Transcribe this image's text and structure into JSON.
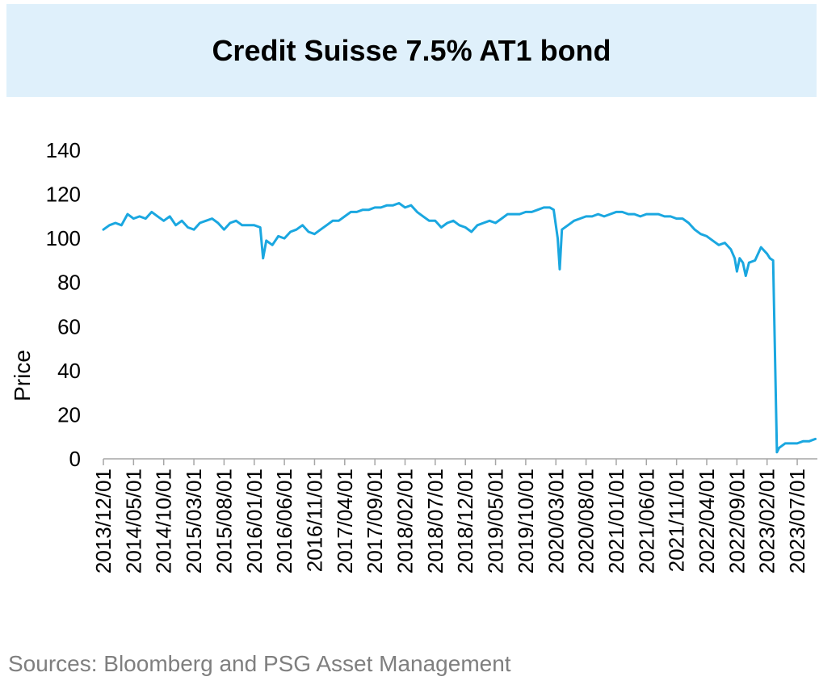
{
  "chart_data": {
    "type": "line",
    "title": "Credit Suisse 7.5% AT1 bond",
    "ylabel": "Price",
    "xlabel": "",
    "ylim": [
      0,
      140
    ],
    "yticks": [
      0,
      20,
      40,
      60,
      80,
      100,
      120,
      140
    ],
    "x_tick_labels": [
      "2013/12/01",
      "2014/05/01",
      "2014/10/01",
      "2015/03/01",
      "2015/08/01",
      "2016/01/01",
      "2016/06/01",
      "2016/11/01",
      "2017/04/01",
      "2017/09/01",
      "2018/02/01",
      "2018/07/01",
      "2018/12/01",
      "2019/05/01",
      "2019/10/01",
      "2020/03/01",
      "2020/08/01",
      "2021/01/01",
      "2021/06/01",
      "2021/11/01",
      "2022/04/01",
      "2022/09/01",
      "2023/02/01",
      "2023/07/01"
    ],
    "grid": false,
    "legend": "none",
    "color": "#1aa7e0",
    "series": [
      {
        "points": [
          [
            "2013/12/01",
            104
          ],
          [
            "2014/01/01",
            106
          ],
          [
            "2014/02/01",
            107
          ],
          [
            "2014/03/01",
            106
          ],
          [
            "2014/04/01",
            111
          ],
          [
            "2014/05/01",
            109
          ],
          [
            "2014/06/01",
            110
          ],
          [
            "2014/07/01",
            109
          ],
          [
            "2014/08/01",
            112
          ],
          [
            "2014/09/01",
            110
          ],
          [
            "2014/10/01",
            108
          ],
          [
            "2014/11/01",
            110
          ],
          [
            "2014/12/01",
            106
          ],
          [
            "2015/01/01",
            108
          ],
          [
            "2015/02/01",
            105
          ],
          [
            "2015/03/01",
            104
          ],
          [
            "2015/04/01",
            107
          ],
          [
            "2015/05/01",
            108
          ],
          [
            "2015/06/01",
            109
          ],
          [
            "2015/07/01",
            107
          ],
          [
            "2015/08/01",
            104
          ],
          [
            "2015/09/01",
            107
          ],
          [
            "2015/10/01",
            108
          ],
          [
            "2015/11/01",
            106
          ],
          [
            "2015/12/01",
            106
          ],
          [
            "2016/01/01",
            106
          ],
          [
            "2016/02/01",
            105
          ],
          [
            "2016/02/15",
            91
          ],
          [
            "2016/03/01",
            99
          ],
          [
            "2016/04/01",
            97
          ],
          [
            "2016/05/01",
            101
          ],
          [
            "2016/06/01",
            100
          ],
          [
            "2016/07/01",
            103
          ],
          [
            "2016/08/01",
            104
          ],
          [
            "2016/09/01",
            106
          ],
          [
            "2016/10/01",
            103
          ],
          [
            "2016/11/01",
            102
          ],
          [
            "2016/12/01",
            104
          ],
          [
            "2017/01/01",
            106
          ],
          [
            "2017/02/01",
            108
          ],
          [
            "2017/03/01",
            108
          ],
          [
            "2017/04/01",
            110
          ],
          [
            "2017/05/01",
            112
          ],
          [
            "2017/06/01",
            112
          ],
          [
            "2017/07/01",
            113
          ],
          [
            "2017/08/01",
            113
          ],
          [
            "2017/09/01",
            114
          ],
          [
            "2017/10/01",
            114
          ],
          [
            "2017/11/01",
            115
          ],
          [
            "2017/12/01",
            115
          ],
          [
            "2018/01/01",
            116
          ],
          [
            "2018/02/01",
            114
          ],
          [
            "2018/03/01",
            115
          ],
          [
            "2018/04/01",
            112
          ],
          [
            "2018/05/01",
            110
          ],
          [
            "2018/06/01",
            108
          ],
          [
            "2018/07/01",
            108
          ],
          [
            "2018/08/01",
            105
          ],
          [
            "2018/09/01",
            107
          ],
          [
            "2018/10/01",
            108
          ],
          [
            "2018/11/01",
            106
          ],
          [
            "2018/12/01",
            105
          ],
          [
            "2019/01/01",
            103
          ],
          [
            "2019/02/01",
            106
          ],
          [
            "2019/03/01",
            107
          ],
          [
            "2019/04/01",
            108
          ],
          [
            "2019/05/01",
            107
          ],
          [
            "2019/06/01",
            109
          ],
          [
            "2019/07/01",
            111
          ],
          [
            "2019/08/01",
            111
          ],
          [
            "2019/09/01",
            111
          ],
          [
            "2019/10/01",
            112
          ],
          [
            "2019/11/01",
            112
          ],
          [
            "2019/12/01",
            113
          ],
          [
            "2020/01/01",
            114
          ],
          [
            "2020/02/01",
            114
          ],
          [
            "2020/02/20",
            113
          ],
          [
            "2020/03/10",
            100
          ],
          [
            "2020/03/20",
            86
          ],
          [
            "2020/04/01",
            104
          ],
          [
            "2020/05/01",
            106
          ],
          [
            "2020/06/01",
            108
          ],
          [
            "2020/07/01",
            109
          ],
          [
            "2020/08/01",
            110
          ],
          [
            "2020/09/01",
            110
          ],
          [
            "2020/10/01",
            111
          ],
          [
            "2020/11/01",
            110
          ],
          [
            "2020/12/01",
            111
          ],
          [
            "2021/01/01",
            112
          ],
          [
            "2021/02/01",
            112
          ],
          [
            "2021/03/01",
            111
          ],
          [
            "2021/04/01",
            111
          ],
          [
            "2021/05/01",
            110
          ],
          [
            "2021/06/01",
            111
          ],
          [
            "2021/07/01",
            111
          ],
          [
            "2021/08/01",
            111
          ],
          [
            "2021/09/01",
            110
          ],
          [
            "2021/10/01",
            110
          ],
          [
            "2021/11/01",
            109
          ],
          [
            "2021/12/01",
            109
          ],
          [
            "2022/01/01",
            107
          ],
          [
            "2022/02/01",
            104
          ],
          [
            "2022/03/01",
            102
          ],
          [
            "2022/04/01",
            101
          ],
          [
            "2022/05/01",
            99
          ],
          [
            "2022/06/01",
            97
          ],
          [
            "2022/07/01",
            98
          ],
          [
            "2022/08/01",
            95
          ],
          [
            "2022/08/20",
            91
          ],
          [
            "2022/09/01",
            85
          ],
          [
            "2022/09/15",
            91
          ],
          [
            "2022/10/01",
            89
          ],
          [
            "2022/10/15",
            83
          ],
          [
            "2022/11/01",
            89
          ],
          [
            "2022/12/01",
            90
          ],
          [
            "2023/01/01",
            96
          ],
          [
            "2023/02/01",
            93
          ],
          [
            "2023/02/15",
            91
          ],
          [
            "2023/03/01",
            90
          ],
          [
            "2023/03/20",
            3
          ],
          [
            "2023/04/01",
            5
          ],
          [
            "2023/05/01",
            7
          ],
          [
            "2023/06/01",
            7
          ],
          [
            "2023/07/01",
            7
          ],
          [
            "2023/08/01",
            8
          ],
          [
            "2023/09/01",
            8
          ],
          [
            "2023/10/01",
            9
          ]
        ]
      }
    ]
  },
  "source": "Sources: Bloomberg and PSG Asset Management"
}
